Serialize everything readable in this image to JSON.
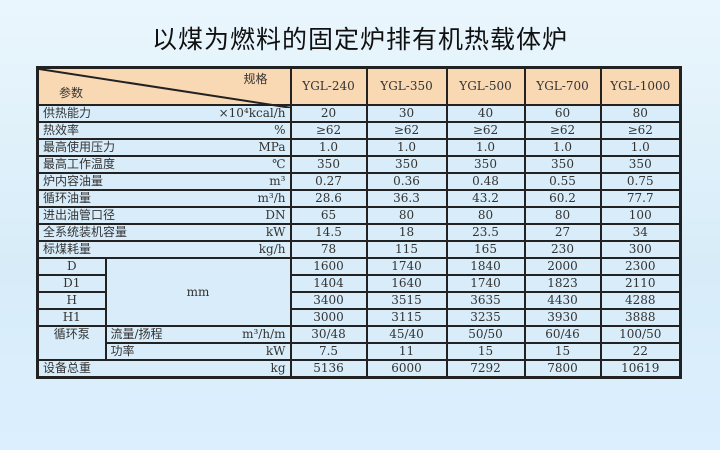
{
  "title": "以煤为燃料的固定炉排有机热载体炉",
  "header": {
    "spec": "规格",
    "param": "参数",
    "models": [
      "YGL-240",
      "YGL-350",
      "YGL-500",
      "YGL-700",
      "YGL-1000"
    ]
  },
  "rows": [
    {
      "label": "供热能力",
      "unit": "×10⁴kcal/h",
      "values": [
        "20",
        "30",
        "40",
        "60",
        "80"
      ]
    },
    {
      "label": "热效率",
      "unit": "%",
      "values": [
        "≥62",
        "≥62",
        "≥62",
        "≥62",
        "≥62"
      ]
    },
    {
      "label": "最高使用压力",
      "unit": "MPa",
      "values": [
        "1.0",
        "1.0",
        "1.0",
        "1.0",
        "1.0"
      ]
    },
    {
      "label": "最高工作温度",
      "unit": "℃",
      "values": [
        "350",
        "350",
        "350",
        "350",
        "350"
      ]
    },
    {
      "label": "炉内容油量",
      "unit": "m³",
      "values": [
        "0.27",
        "0.36",
        "0.48",
        "0.55",
        "0.75"
      ]
    },
    {
      "label": "循环油量",
      "unit": "m³/h",
      "values": [
        "28.6",
        "36.3",
        "43.2",
        "60.2",
        "77.7"
      ]
    },
    {
      "label": "进出油管口径",
      "unit": "DN",
      "values": [
        "65",
        "80",
        "80",
        "80",
        "100"
      ]
    },
    {
      "label": "全系统装机容量",
      "unit": "kW",
      "values": [
        "14.5",
        "18",
        "23.5",
        "27",
        "34"
      ]
    },
    {
      "label": "标煤耗量",
      "unit": "kg/h",
      "values": [
        "78",
        "115",
        "165",
        "230",
        "300"
      ]
    }
  ],
  "dims": {
    "unit": "mm",
    "rows": [
      {
        "label": "D",
        "values": [
          "1600",
          "1740",
          "1840",
          "2000",
          "2300"
        ]
      },
      {
        "label": "D1",
        "values": [
          "1404",
          "1640",
          "1740",
          "1823",
          "2110"
        ]
      },
      {
        "label": "H",
        "values": [
          "3400",
          "3515",
          "3635",
          "4430",
          "4288"
        ]
      },
      {
        "label": "H1",
        "values": [
          "3000",
          "3115",
          "3235",
          "3930",
          "3888"
        ]
      }
    ]
  },
  "pump": {
    "label": "循环泵",
    "rows": [
      {
        "label": "流量/扬程",
        "unit": "m³/h/m",
        "values": [
          "30/48",
          "45/40",
          "50/50",
          "60/46",
          "100/50"
        ]
      },
      {
        "label": "功率",
        "unit": "kW",
        "values": [
          "7.5",
          "11",
          "15",
          "15",
          "22"
        ]
      }
    ]
  },
  "total": {
    "label": "设备总重",
    "unit": "kg",
    "values": [
      "5136",
      "6000",
      "7292",
      "7800",
      "10619"
    ]
  }
}
